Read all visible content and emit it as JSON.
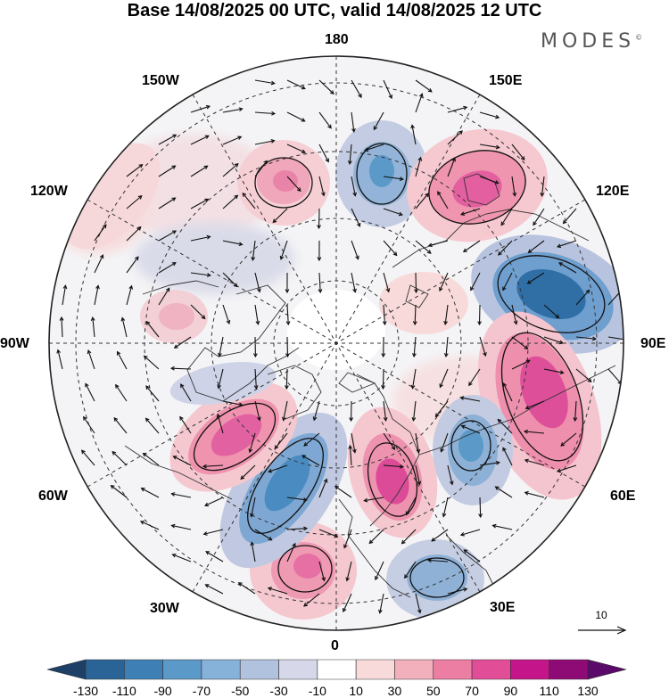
{
  "header": {
    "title": "Base 14/08/2025 00 UTC, valid 14/08/2025 12 UTC",
    "brand": "MODES"
  },
  "map": {
    "projection": "north-polar-stereographic",
    "longitude_labels": {
      "deg180": "180",
      "deg150E": "150E",
      "deg120E": "120E",
      "deg90E": "90E",
      "deg60E": "60E",
      "deg30E": "30E",
      "deg0": "0",
      "deg30W": "30W",
      "deg60W": "60W",
      "deg90W": "90W",
      "deg120W": "120W",
      "deg150W": "150W"
    },
    "reference_vector": "10"
  },
  "colorbar": {
    "ticks": [
      "-130",
      "-110",
      "-90",
      "-70",
      "-50",
      "-30",
      "-10",
      "10",
      "30",
      "50",
      "70",
      "90",
      "110",
      "130"
    ],
    "colors": [
      "#1e3f66",
      "#2a6496",
      "#3e7fb5",
      "#5b99c8",
      "#86b1d8",
      "#b1c2de",
      "#d6d8ea",
      "#ffffff",
      "#f8dada",
      "#f2b0bd",
      "#ec7ea3",
      "#e24d97",
      "#c4168a",
      "#8e0b76",
      "#5a0a68"
    ]
  },
  "anomalies": [
    {
      "name": "positive-anomaly-nw-pacific",
      "sign": "positive"
    },
    {
      "name": "negative-anomaly-dateline",
      "sign": "negative"
    },
    {
      "name": "positive-anomaly-east-siberia",
      "sign": "positive"
    },
    {
      "name": "negative-anomaly-central-siberia",
      "sign": "negative"
    },
    {
      "name": "positive-anomaly-west-siberia",
      "sign": "positive"
    },
    {
      "name": "negative-anomaly-kara-sea",
      "sign": "negative"
    },
    {
      "name": "positive-anomaly-scandinavia",
      "sign": "positive"
    },
    {
      "name": "negative-anomaly-europe",
      "sign": "negative"
    },
    {
      "name": "positive-anomaly-east-atlantic",
      "sign": "positive"
    },
    {
      "name": "negative-anomaly-north-atlantic",
      "sign": "negative"
    },
    {
      "name": "positive-anomaly-labrador",
      "sign": "positive"
    },
    {
      "name": "positive-anomaly-canada",
      "sign": "positive"
    },
    {
      "name": "positive-anomaly-alaska",
      "sign": "positive"
    },
    {
      "name": "negative-anomaly-mediterranean",
      "sign": "negative"
    },
    {
      "name": "positive-anomaly-north-africa",
      "sign": "positive"
    }
  ]
}
